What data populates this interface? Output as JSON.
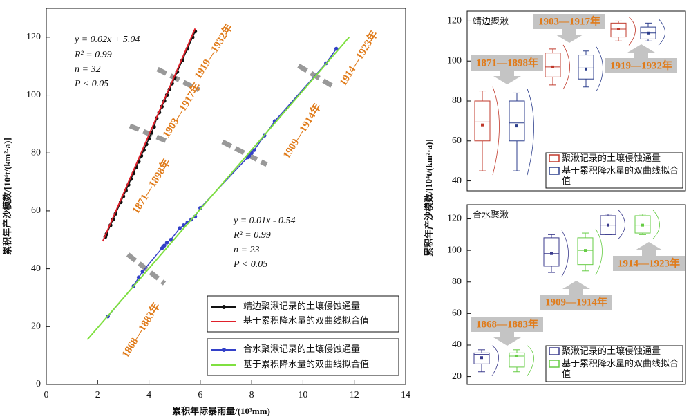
{
  "chart_data": [
    {
      "type": "line",
      "xlabel": "累积年际暴雨量/(10³mm)",
      "ylabel": "累积年产沙模数/[10⁴t/(km²·a)]",
      "xlim": [
        0,
        14
      ],
      "xticks": [
        0,
        2,
        4,
        6,
        8,
        10,
        12,
        14
      ],
      "ylim": [
        0,
        130
      ],
      "yticks": [
        0,
        20,
        40,
        60,
        80,
        100,
        120
      ],
      "annotations": [
        "y = 0.02x + 5.04",
        "R² = 0.99",
        "n = 32",
        "P < 0.05",
        "y = 0.01x -  0.54",
        "R² = 0.99",
        "n = 23",
        "P < 0.05"
      ],
      "period_labels": [
        "1919—1932年",
        "1903—1917年",
        "1871—1898年",
        "1868—1883年",
        "1909—1914年",
        "1914—1923年"
      ],
      "series": [
        {
          "name": "靖边聚湫记录的土壤侵蚀通量",
          "color": "#111111",
          "markers": true,
          "x": [
            2.3,
            2.35,
            2.5,
            2.6,
            2.7,
            2.9,
            3.0,
            3.1,
            3.2,
            3.3,
            3.4,
            3.5,
            3.6,
            3.7,
            3.8,
            3.9,
            4.0,
            4.1,
            4.2,
            4.3,
            4.4,
            4.5,
            4.6,
            4.7,
            4.8,
            4.9,
            5.0,
            5.1,
            5.3,
            5.5,
            5.7,
            5.8
          ],
          "values": [
            51,
            52,
            55,
            57,
            59,
            63,
            65,
            67,
            69,
            71,
            73,
            75,
            77,
            79,
            81,
            83,
            85,
            87,
            89,
            92,
            94,
            96,
            98,
            100,
            102,
            104,
            106,
            108,
            112,
            116,
            120,
            122
          ]
        },
        {
          "name": "基于累积降水量的双曲线拟合值",
          "color": "#e0202a",
          "markers": false,
          "x": [
            2.2,
            5.8
          ],
          "values": [
            49.5,
            123
          ]
        },
        {
          "name": "合水聚湫记录的土壤侵蚀通量",
          "color": "#3340c8",
          "markers": true,
          "x": [
            2.4,
            3.4,
            3.6,
            3.75,
            4.5,
            4.55,
            4.6,
            4.7,
            4.85,
            5.2,
            5.35,
            5.5,
            5.65,
            5.8,
            6.0,
            7.85,
            7.9,
            8.0,
            8.1,
            8.5,
            8.9,
            10.9,
            11.3
          ],
          "values": [
            23.5,
            34,
            37,
            39,
            47,
            47.5,
            48,
            49,
            50,
            54,
            55,
            56,
            57,
            58,
            61,
            78.5,
            79,
            80,
            81,
            86,
            91,
            111,
            116
          ]
        },
        {
          "name": "基于累积降水量的双曲线拟合值",
          "color": "#7fe040",
          "markers": false,
          "x": [
            1.6,
            11.8
          ],
          "values": [
            15.5,
            120
          ]
        }
      ]
    },
    {
      "type": "box",
      "title": "靖边聚湫",
      "ylabel": "累积年产沙模数/[10⁴t/(km²·a)]",
      "ylim": [
        35,
        125
      ],
      "yticks": [
        40,
        60,
        80,
        100,
        120
      ],
      "categories": [
        "1871—1898年",
        "1903—1917年",
        "1919—1932年"
      ],
      "series": [
        {
          "name": "聚湫记录的土壤侵蚀通量",
          "color": "#c0392b",
          "boxes": [
            {
              "whislo": 45,
              "q1": 60,
              "med": 69.5,
              "q3": 80,
              "whishi": 85,
              "mean": 68
            },
            {
              "whislo": 88,
              "q1": 92,
              "med": 97,
              "q3": 104,
              "whishi": 106,
              "mean": 97
            },
            {
              "whislo": 110,
              "q1": 112,
              "med": 116,
              "q3": 119,
              "whishi": 120,
              "mean": 116
            }
          ]
        },
        {
          "name": "基于累积降水量的双曲线拟合值",
          "color": "#2c3e8c",
          "boxes": [
            {
              "whislo": 45,
              "q1": 60,
              "med": 69,
              "q3": 80,
              "whishi": 84,
              "mean": 67.5
            },
            {
              "whislo": 87,
              "q1": 91,
              "med": 96.5,
              "q3": 103,
              "whishi": 105,
              "mean": 96
            },
            {
              "whislo": 110,
              "q1": 111,
              "med": 114,
              "q3": 117,
              "whishi": 119,
              "mean": 114
            }
          ]
        }
      ]
    },
    {
      "type": "box",
      "title": "合水聚湫",
      "ylim": [
        15,
        129
      ],
      "yticks": [
        20,
        40,
        60,
        80,
        100,
        120
      ],
      "categories": [
        "1868—1883年",
        "1909—1914年",
        "1914—1923年"
      ],
      "series": [
        {
          "name": "聚湫记录的土壤侵蚀通量",
          "color": "#3a3a8c",
          "boxes": [
            {
              "whislo": 23,
              "q1": 28,
              "med": 34,
              "q3": 35,
              "whishi": 37,
              "mean": 32
            },
            {
              "whislo": 86,
              "q1": 90,
              "med": 98,
              "q3": 108,
              "whishi": 110,
              "mean": 98
            },
            {
              "whislo": 110,
              "q1": 110,
              "med": 116,
              "q3": 122,
              "whishi": 123,
              "mean": 116
            }
          ]
        },
        {
          "name": "基于累积降水量的双曲线拟合值",
          "color": "#66cc44",
          "boxes": [
            {
              "whislo": 23,
              "q1": 26,
              "med": 33,
              "q3": 35,
              "whishi": 37,
              "mean": 33
            },
            {
              "whislo": 87,
              "q1": 91,
              "med": 100,
              "q3": 108,
              "whishi": 111,
              "mean": 100
            },
            {
              "whislo": 110,
              "q1": 111,
              "med": 116,
              "q3": 122,
              "whishi": 123,
              "mean": 116
            }
          ]
        }
      ]
    }
  ]
}
